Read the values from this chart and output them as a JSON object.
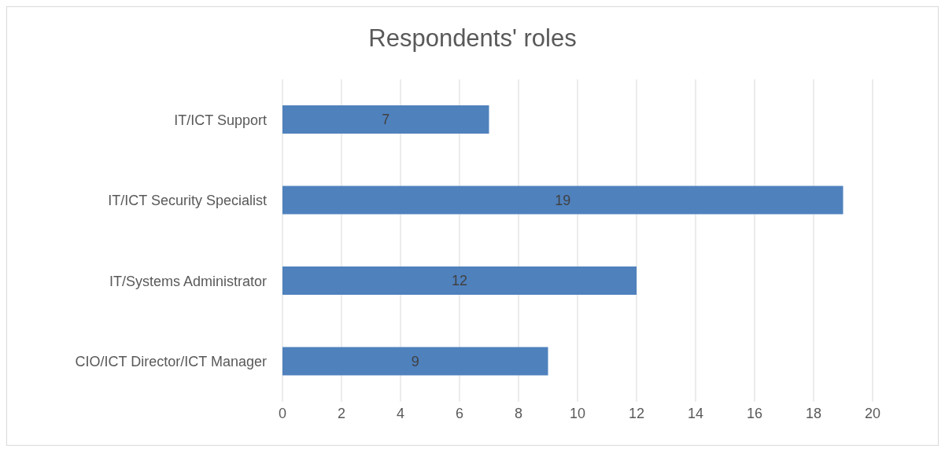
{
  "chart_data": {
    "type": "bar",
    "title": "Respondents' roles",
    "orientation": "horizontal",
    "categories": [
      "IT/ICT Support",
      "IT/ICT Security Specialist",
      "IT/Systems Administrator",
      "CIO/ICT Director/ICT Manager"
    ],
    "values": [
      7,
      19,
      12,
      9
    ],
    "color": "#4f81bd",
    "xlim": [
      0,
      20
    ],
    "xticks": [
      0,
      2,
      4,
      6,
      8,
      10,
      12,
      14,
      16,
      18,
      20
    ],
    "grid": "x",
    "data_labels": true
  }
}
